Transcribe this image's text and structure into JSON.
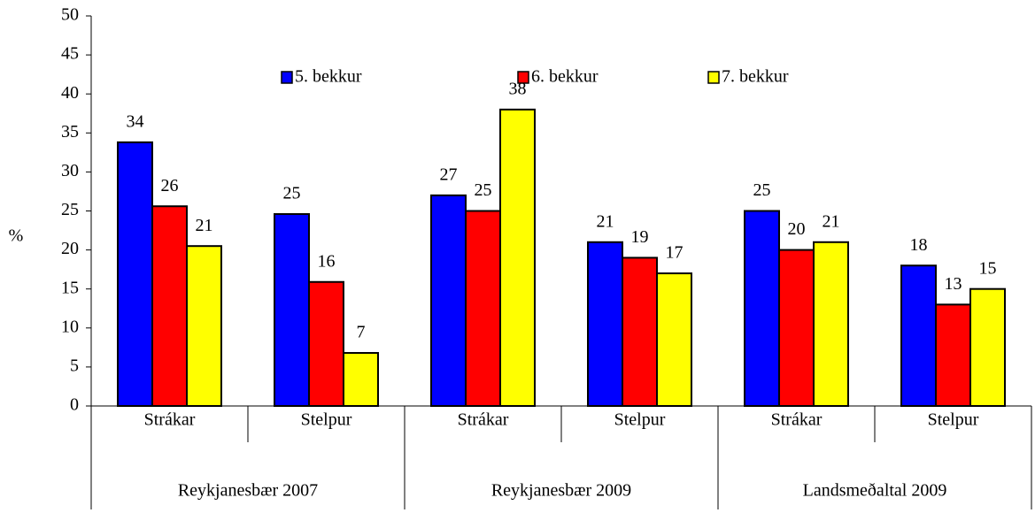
{
  "chart_data": {
    "type": "bar",
    "y_label": "%",
    "categories": [
      "Strákar",
      "Stelpur",
      "Strákar",
      "Stelpur",
      "Strákar",
      "Stelpur"
    ],
    "group_labels": [
      "Reykjanesbær 2007",
      "Reykjanesbær 2009",
      "Landsmeðaltal 2009"
    ],
    "series": [
      {
        "name": "5. bekkur",
        "color": "#0000ff",
        "values": [
          33.8,
          24.6,
          27,
          21,
          25,
          18
        ],
        "value_labels": [
          "34",
          "25",
          "27",
          "21",
          "25",
          "18"
        ]
      },
      {
        "name": "6. bekkur",
        "color": "#ff0000",
        "values": [
          25.6,
          15.9,
          25,
          19,
          20,
          13
        ],
        "value_labels": [
          "26",
          "16",
          "25",
          "19",
          "20",
          "13"
        ]
      },
      {
        "name": "7. bekkur",
        "color": "#ffff00",
        "values": [
          20.5,
          6.8,
          38,
          17,
          21,
          15
        ],
        "value_labels": [
          "21",
          "7",
          "38",
          "17",
          "21",
          "15"
        ]
      }
    ],
    "ylim": [
      0,
      50
    ],
    "yticks": [
      0,
      5,
      10,
      15,
      20,
      25,
      30,
      35,
      40,
      45,
      50
    ]
  }
}
